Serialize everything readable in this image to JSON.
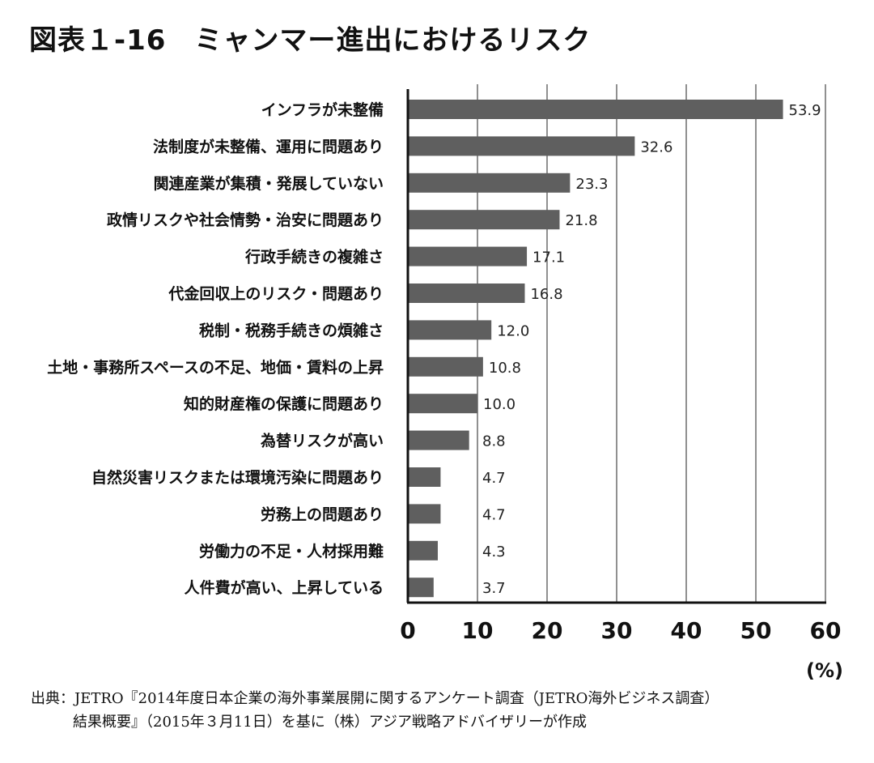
{
  "title": "図表１-16　ミャンマー進出におけるリスク",
  "source": {
    "line1": "出典：JETRO『2014年度日本企業の海外事業展開に関するアンケート調査（JETRO海外ビジネス調査）",
    "line2": "結果概要』（2015年３月11日）を基に（株）アジア戦略アドバイザリーが作成"
  },
  "chart_data": {
    "type": "bar",
    "orientation": "horizontal",
    "categories": [
      "インフラが未整備",
      "法制度が未整備、運用に問題あり",
      "関連産業が集積・発展していない",
      "政情リスクや社会情勢・治安に問題あり",
      "行政手続きの複雑さ",
      "代金回収上のリスク・問題あり",
      "税制・税務手続きの煩雑さ",
      "土地・事務所スペースの不足、地価・賃料の上昇",
      "知的財産権の保護に問題あり",
      "為替リスクが高い",
      "自然災害リスクまたは環境汚染に問題あり",
      "労務上の問題あり",
      "労働力の不足・人材採用難",
      "人件費が高い、上昇している"
    ],
    "values": [
      53.9,
      32.6,
      23.3,
      21.8,
      17.1,
      16.8,
      12.0,
      10.8,
      10.0,
      8.8,
      4.7,
      4.7,
      4.3,
      3.7
    ],
    "value_labels": [
      "53.9",
      "32.6",
      "23.3",
      "21.8",
      "17.1",
      "16.8",
      "12.0",
      "10.8",
      "10.0",
      "8.8",
      "4.7",
      "4.7",
      "4.3",
      "3.7"
    ],
    "xlim": [
      0,
      60
    ],
    "xticks": [
      "0",
      "10",
      "20",
      "30",
      "40",
      "50",
      "60"
    ],
    "unit_label": "(%)",
    "grid": true,
    "bar_color": "#5f5f5f"
  }
}
